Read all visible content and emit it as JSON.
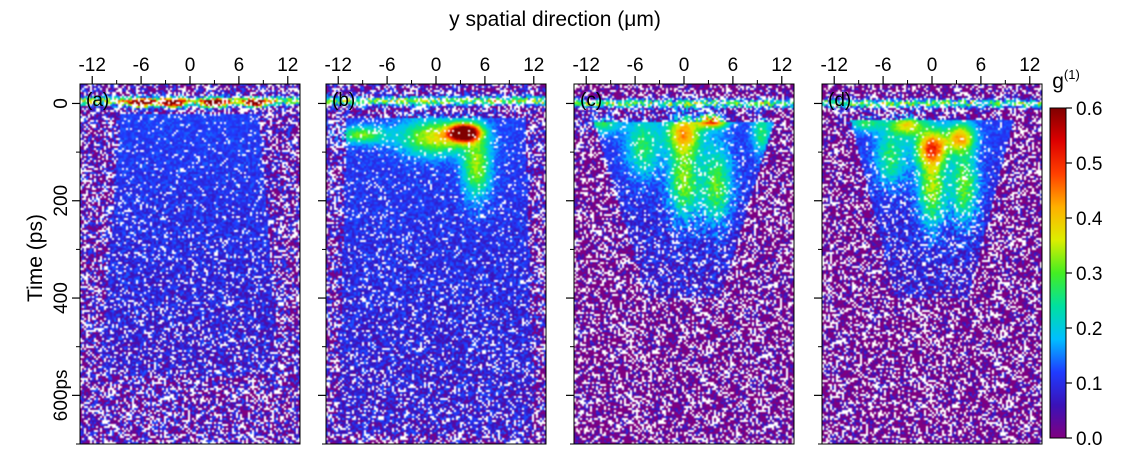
{
  "chart_data": {
    "type": "heatmap",
    "xlabel": "y spatial direction (μm)",
    "ylabel": "Time (ps)",
    "x_ticks": [
      -12,
      -6,
      0,
      6,
      12
    ],
    "x_tick_labels": [
      "-12",
      "-6",
      "0",
      "6",
      "12"
    ],
    "xlim": [
      -13.5,
      13.5
    ],
    "y_ticks": [
      0,
      200,
      400,
      600
    ],
    "y_tick_labels": [
      "0",
      "200",
      "400",
      "600ps"
    ],
    "ylim": [
      -40,
      700
    ],
    "colorbar": {
      "label": "g(1)",
      "label_main": "g",
      "label_sup": "(1)",
      "range": [
        0.0,
        0.6
      ],
      "ticks": [
        0.0,
        0.1,
        0.2,
        0.3,
        0.4,
        0.5,
        0.6
      ],
      "tick_labels": [
        "0.0",
        "0.1",
        "0.2",
        "0.3",
        "0.4",
        "0.5",
        "0.6"
      ],
      "colormap": [
        "#800080",
        "#3a12b8",
        "#1f3cff",
        "#00bfff",
        "#00e0a0",
        "#44ee22",
        "#ddee00",
        "#ffb000",
        "#ff4000",
        "#dd0000",
        "#800000"
      ]
    },
    "panels": [
      {
        "label": "(a)",
        "background_g1": 0.04,
        "front_time_ps": -5,
        "cone": {
          "t_start": 20,
          "t_end": 560,
          "hw_start": 8.5,
          "hw_end": 11
        },
        "hotspots": [
          {
            "y": -6,
            "t": 0,
            "g1": 0.45,
            "sy": 1.2,
            "st": 6
          },
          {
            "y": -2,
            "t": 0,
            "g1": 0.5,
            "sy": 1.0,
            "st": 6
          },
          {
            "y": 3,
            "t": 0,
            "g1": 0.5,
            "sy": 1.2,
            "st": 6
          },
          {
            "y": 8,
            "t": 0,
            "g1": 0.45,
            "sy": 1.0,
            "st": 6
          }
        ]
      },
      {
        "label": "(b)",
        "background_g1": 0.04,
        "front_time_ps": -5,
        "cone": {
          "t_start": 30,
          "t_end": 680,
          "hw_start": 11,
          "hw_end": 12
        },
        "hotspots": [
          {
            "y": 3.5,
            "t": 60,
            "g1": 0.6,
            "sy": 1.3,
            "st": 12
          },
          {
            "y": 0,
            "t": 70,
            "g1": 0.25,
            "sy": 3.0,
            "st": 25
          },
          {
            "y": 5,
            "t": 130,
            "g1": 0.22,
            "sy": 1.2,
            "st": 45
          },
          {
            "y": -9,
            "t": 65,
            "g1": 0.2,
            "sy": 2.0,
            "st": 12
          }
        ]
      },
      {
        "label": "(c)",
        "background_g1": 0.0,
        "front_time_ps": 0,
        "cone": {
          "t_start": 40,
          "t_end": 400,
          "hw_start": 11,
          "hw_end": 4.5
        },
        "hotspots": [
          {
            "y": 3.5,
            "t": 35,
            "g1": 0.42,
            "sy": 1.2,
            "st": 10
          },
          {
            "y": 0,
            "t": 60,
            "g1": 0.28,
            "sy": 1.5,
            "st": 30
          },
          {
            "y": 0,
            "t": 160,
            "g1": 0.22,
            "sy": 1.3,
            "st": 55
          },
          {
            "y": 4,
            "t": 170,
            "g1": 0.2,
            "sy": 1.3,
            "st": 55
          },
          {
            "y": -5,
            "t": 90,
            "g1": 0.16,
            "sy": 1.4,
            "st": 45
          },
          {
            "y": -10,
            "t": 40,
            "g1": 0.15,
            "sy": 1.5,
            "st": 15
          },
          {
            "y": 9.5,
            "t": 60,
            "g1": 0.15,
            "sy": 0.8,
            "st": 30
          }
        ]
      },
      {
        "label": "(d)",
        "background_g1": 0.0,
        "front_time_ps": 0,
        "cone": {
          "t_start": 35,
          "t_end": 400,
          "hw_start": 10,
          "hw_end": 4.5
        },
        "hotspots": [
          {
            "y": 0,
            "t": 90,
            "g1": 0.3,
            "sy": 1.4,
            "st": 25
          },
          {
            "y": 0,
            "t": 170,
            "g1": 0.24,
            "sy": 1.2,
            "st": 60
          },
          {
            "y": 3.5,
            "t": 70,
            "g1": 0.28,
            "sy": 1.2,
            "st": 20
          },
          {
            "y": -3,
            "t": 45,
            "g1": 0.25,
            "sy": 1.4,
            "st": 15
          },
          {
            "y": 4,
            "t": 170,
            "g1": 0.2,
            "sy": 1.2,
            "st": 55
          },
          {
            "y": -5,
            "t": 110,
            "g1": 0.16,
            "sy": 1.3,
            "st": 40
          },
          {
            "y": -8,
            "t": 40,
            "g1": 0.15,
            "sy": 1.5,
            "st": 12
          }
        ]
      }
    ]
  }
}
